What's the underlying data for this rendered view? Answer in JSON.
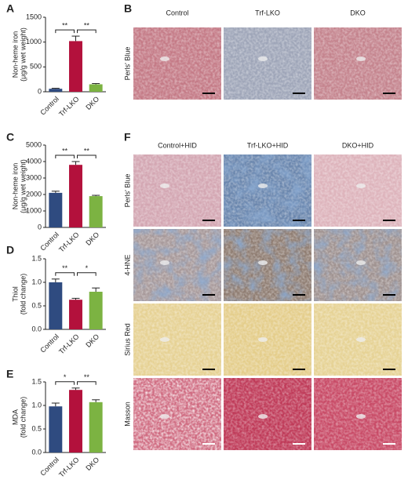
{
  "chart_data": [
    {
      "type": "bar",
      "panel": "A",
      "y_label": [
        "Non-heme iron",
        "(μg/g wet weight)"
      ],
      "categories": [
        "Control",
        "Trf-LKO",
        "DKO"
      ],
      "values": [
        60,
        1020,
        150
      ],
      "errors": [
        10,
        100,
        15
      ],
      "colors": [
        "#2f4b80",
        "#b3113c",
        "#7cb342"
      ],
      "ylim": [
        0,
        1500
      ],
      "yticks": [
        0,
        500,
        1000,
        1500
      ],
      "significance": [
        "**",
        "**"
      ]
    },
    {
      "type": "bar",
      "panel": "C",
      "y_label": [
        "Non-heme iron",
        "(μg/g wet weight)"
      ],
      "categories": [
        "Control",
        "Trf-LKO",
        "DKO"
      ],
      "values": [
        2100,
        3800,
        1900
      ],
      "errors": [
        100,
        200,
        50
      ],
      "colors": [
        "#2f4b80",
        "#b3113c",
        "#7cb342"
      ],
      "ylim": [
        0,
        5000
      ],
      "yticks": [
        0,
        1000,
        2000,
        3000,
        4000,
        5000
      ],
      "significance": [
        "**",
        "**"
      ]
    },
    {
      "type": "bar",
      "panel": "D",
      "y_label": [
        "Thiol",
        "(fold change)"
      ],
      "categories": [
        "Control",
        "Trf-LKO",
        "DKO"
      ],
      "values": [
        1.0,
        0.63,
        0.8
      ],
      "errors": [
        0.07,
        0.03,
        0.08
      ],
      "colors": [
        "#2f4b80",
        "#b3113c",
        "#7cb342"
      ],
      "ylim": [
        0,
        1.5
      ],
      "yticks": [
        {
          "value": 0,
          "label": "0.0"
        },
        0.5,
        {
          "value": 1,
          "label": "1.0"
        },
        1.5
      ],
      "significance": [
        "**",
        "*"
      ]
    },
    {
      "type": "bar",
      "panel": "E",
      "y_label": [
        "MDA",
        "(fold change)"
      ],
      "categories": [
        "Control",
        "Trf-LKO",
        "DKO"
      ],
      "values": [
        0.98,
        1.33,
        1.07
      ],
      "errors": [
        0.07,
        0.04,
        0.05
      ],
      "colors": [
        "#2f4b80",
        "#b3113c",
        "#7cb342"
      ],
      "ylim": [
        0,
        1.5
      ],
      "yticks": [
        {
          "value": 0,
          "label": "0.0"
        },
        0.5,
        {
          "value": 1,
          "label": "1.0"
        },
        1.5
      ],
      "significance": [
        "*",
        "**"
      ]
    }
  ],
  "image_panels": [
    {
      "panel": "B",
      "columns": [
        "Control",
        "Trf-LKO",
        "DKO"
      ],
      "rows": [
        "Perls' Blue"
      ]
    },
    {
      "panel": "F",
      "columns": [
        "Control+HID",
        "Trf-LKO+HID",
        "DKO+HID"
      ],
      "rows": [
        "Perls' Blue",
        "4-HNE",
        "Sirius Red",
        "Masson"
      ]
    }
  ]
}
